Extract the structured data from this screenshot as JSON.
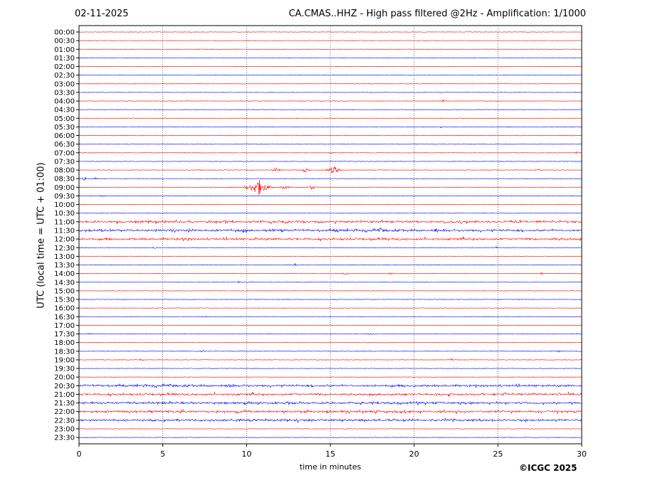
{
  "header": {
    "date": "02-11-2025",
    "title": "CA.CMAS..HHZ - High pass filtered @2Hz - Amplification: 1/1000"
  },
  "footer": {
    "credit": "©ICGC 2025"
  },
  "chart_data": {
    "type": "line",
    "xlabel": "time in minutes",
    "ylabel": "UTC (local time = UTC + 01:00)",
    "xlim": [
      0,
      30
    ],
    "xticks": [
      0,
      5,
      10,
      15,
      20,
      25,
      30
    ],
    "grid": "vertical dotted lines at 5-minute ticks",
    "colors": {
      "odd_hour_trace": "#ff0000",
      "even_hour_trace": "#0000ff"
    },
    "rows": [
      "00:00",
      "00:30",
      "01:00",
      "01:30",
      "02:00",
      "02:30",
      "03:00",
      "03:30",
      "04:00",
      "04:30",
      "05:00",
      "05:30",
      "06:00",
      "06:30",
      "07:00",
      "07:30",
      "08:00",
      "08:30",
      "09:00",
      "09:30",
      "10:00",
      "10:30",
      "11:00",
      "11:30",
      "12:00",
      "12:30",
      "13:00",
      "13:30",
      "14:00",
      "14:30",
      "15:00",
      "15:30",
      "16:00",
      "16:30",
      "17:00",
      "17:30",
      "18:00",
      "18:30",
      "19:00",
      "19:30",
      "20:00",
      "20:30",
      "21:00",
      "21:30",
      "22:00",
      "22:30",
      "23:00",
      "23:30"
    ],
    "row_colors": [
      "red",
      "red",
      "red",
      "blue",
      "red",
      "blue",
      "red",
      "blue",
      "red",
      "blue",
      "red",
      "blue",
      "red",
      "blue",
      "red",
      "blue",
      "red",
      "blue",
      "red",
      "blue",
      "red",
      "blue",
      "red",
      "blue",
      "red",
      "blue",
      "red",
      "blue",
      "red",
      "blue",
      "red",
      "blue",
      "red",
      "blue",
      "red",
      "blue",
      "red",
      "blue",
      "red",
      "blue",
      "red",
      "blue",
      "red",
      "blue",
      "red",
      "blue",
      "red",
      "blue"
    ],
    "events": [
      {
        "row": 8,
        "minute": 21.7,
        "amp": 0.15
      },
      {
        "row": 11,
        "minute": 21.6,
        "amp": 0.1
      },
      {
        "row": 14,
        "minute": 15.1,
        "amp": 0.1
      },
      {
        "row": 14,
        "minute": 29.7,
        "amp": 0.1
      },
      {
        "row": 16,
        "minute": 7.2,
        "amp": 0.1
      },
      {
        "row": 16,
        "minute": 11.8,
        "amp": 0.25
      },
      {
        "row": 16,
        "minute": 13.5,
        "amp": 0.25
      },
      {
        "row": 16,
        "minute": 15.2,
        "amp": 0.5
      },
      {
        "row": 16,
        "minute": 27.5,
        "amp": 0.15
      },
      {
        "row": 17,
        "minute": 0.3,
        "amp": 0.15
      },
      {
        "row": 17,
        "minute": 1.0,
        "amp": 0.1
      },
      {
        "row": 18,
        "minute": 9.2,
        "amp": 0.15
      },
      {
        "row": 18,
        "minute": 10.7,
        "amp": 0.9
      },
      {
        "row": 18,
        "minute": 12.3,
        "amp": 0.25
      },
      {
        "row": 18,
        "minute": 13.9,
        "amp": 0.25
      },
      {
        "row": 19,
        "minute": 1.4,
        "amp": 0.1
      },
      {
        "row": 22,
        "minute": 8.7,
        "amp": 0.15
      },
      {
        "row": 22,
        "minute": 22.8,
        "amp": 0.15
      },
      {
        "row": 22,
        "minute": 29.5,
        "amp": 0.1
      },
      {
        "row": 23,
        "minute": 1.3,
        "amp": 0.15
      },
      {
        "row": 23,
        "minute": 5.5,
        "amp": 0.15
      },
      {
        "row": 23,
        "minute": 9.8,
        "amp": 0.15
      },
      {
        "row": 23,
        "minute": 15.4,
        "amp": 0.15
      },
      {
        "row": 23,
        "minute": 18.0,
        "amp": 0.15
      },
      {
        "row": 23,
        "minute": 21.3,
        "amp": 0.15
      },
      {
        "row": 24,
        "minute": 6.5,
        "amp": 0.1
      },
      {
        "row": 24,
        "minute": 10.5,
        "amp": 0.1
      },
      {
        "row": 24,
        "minute": 28.4,
        "amp": 0.1
      },
      {
        "row": 25,
        "minute": 4.5,
        "amp": 0.1
      },
      {
        "row": 25,
        "minute": 24.9,
        "amp": 0.1
      },
      {
        "row": 27,
        "minute": 12.9,
        "amp": 0.12
      },
      {
        "row": 28,
        "minute": 15.9,
        "amp": 0.12
      },
      {
        "row": 28,
        "minute": 18.6,
        "amp": 0.12
      },
      {
        "row": 28,
        "minute": 27.6,
        "amp": 0.12
      },
      {
        "row": 29,
        "minute": 9.5,
        "amp": 0.1
      },
      {
        "row": 31,
        "minute": 26.3,
        "amp": 0.1
      },
      {
        "row": 33,
        "minute": 7.5,
        "amp": 0.08
      },
      {
        "row": 35,
        "minute": 0.6,
        "amp": 0.1
      },
      {
        "row": 35,
        "minute": 17.4,
        "amp": 0.1
      },
      {
        "row": 37,
        "minute": 7.4,
        "amp": 0.1
      },
      {
        "row": 37,
        "minute": 28.6,
        "amp": 0.1
      },
      {
        "row": 38,
        "minute": 3.7,
        "amp": 0.1
      },
      {
        "row": 38,
        "minute": 22.2,
        "amp": 0.15
      },
      {
        "row": 41,
        "minute": 9.0,
        "amp": 0.12
      },
      {
        "row": 42,
        "minute": 25.4,
        "amp": 0.12
      },
      {
        "row": 43,
        "minute": 12.5,
        "amp": 0.12
      },
      {
        "row": 44,
        "minute": 6.1,
        "amp": 0.12
      },
      {
        "row": 44,
        "minute": 15.7,
        "amp": 0.12
      },
      {
        "row": 45,
        "minute": 22.3,
        "amp": 0.12
      }
    ],
    "busy_rows": [
      22,
      23,
      24,
      41,
      42,
      43,
      44,
      45
    ]
  }
}
